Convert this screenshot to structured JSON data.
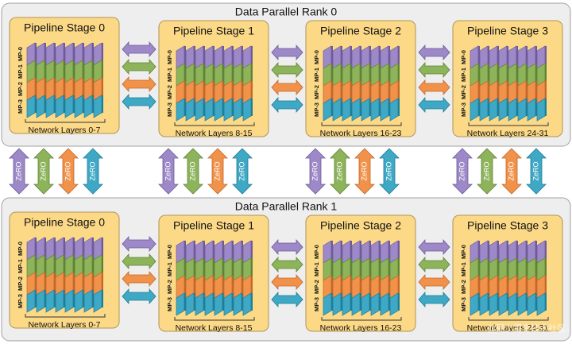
{
  "ranks": [
    {
      "title": "Data Parallel Rank 0",
      "stages": [
        {
          "title": "Pipeline Stage 0",
          "mp_labels": [
            "MP-0",
            "MP-1",
            "MP-2",
            "MP-3"
          ],
          "layers": "Network Layers 0-7"
        },
        {
          "title": "Pipeline Stage 1",
          "mp_labels": [
            "MP-0",
            "MP-1",
            "MP-2",
            "MP-3"
          ],
          "layers": "Network Layers 8-15"
        },
        {
          "title": "Pipeline Stage 2",
          "mp_labels": [
            "MP-0",
            "MP-1",
            "MP-2",
            "MP-3"
          ],
          "layers": "Network Layers 16-23"
        },
        {
          "title": "Pipeline Stage 3",
          "mp_labels": [
            "MP-0",
            "MP-1",
            "MP-2",
            "MP-3"
          ],
          "layers": "Network Layers 24-31"
        }
      ]
    },
    {
      "title": "Data Parallel Rank 1",
      "stages": [
        {
          "title": "Pipeline Stage 0",
          "mp_labels": [
            "MP-0",
            "MP-1",
            "MP-2",
            "MP-3"
          ],
          "layers": "Network Layers 0-7"
        },
        {
          "title": "Pipeline Stage 1",
          "mp_labels": [
            "MP-0",
            "MP-1",
            "MP-2",
            "MP-3"
          ],
          "layers": "Network Layers 8-15"
        },
        {
          "title": "Pipeline Stage 2",
          "mp_labels": [
            "MP-0",
            "MP-1",
            "MP-2",
            "MP-3"
          ],
          "layers": "Network Layers 16-23"
        },
        {
          "title": "Pipeline Stage 3",
          "mp_labels": [
            "MP-0",
            "MP-1",
            "MP-2",
            "MP-3"
          ],
          "layers": "Network Layers 24-31"
        }
      ]
    }
  ],
  "zero_groups": [
    [
      "ZeRO",
      "ZeRO",
      "ZeRO",
      "ZeRO"
    ],
    [
      "ZeRO",
      "ZeRO",
      "ZeRO",
      "ZeRO"
    ],
    [
      "ZeRO",
      "ZeRO",
      "ZeRO",
      "ZeRO"
    ],
    [
      "ZeRO",
      "ZeRO",
      "ZeRO",
      "ZeRO"
    ]
  ],
  "watermark": "@稀土掘金技术社区"
}
